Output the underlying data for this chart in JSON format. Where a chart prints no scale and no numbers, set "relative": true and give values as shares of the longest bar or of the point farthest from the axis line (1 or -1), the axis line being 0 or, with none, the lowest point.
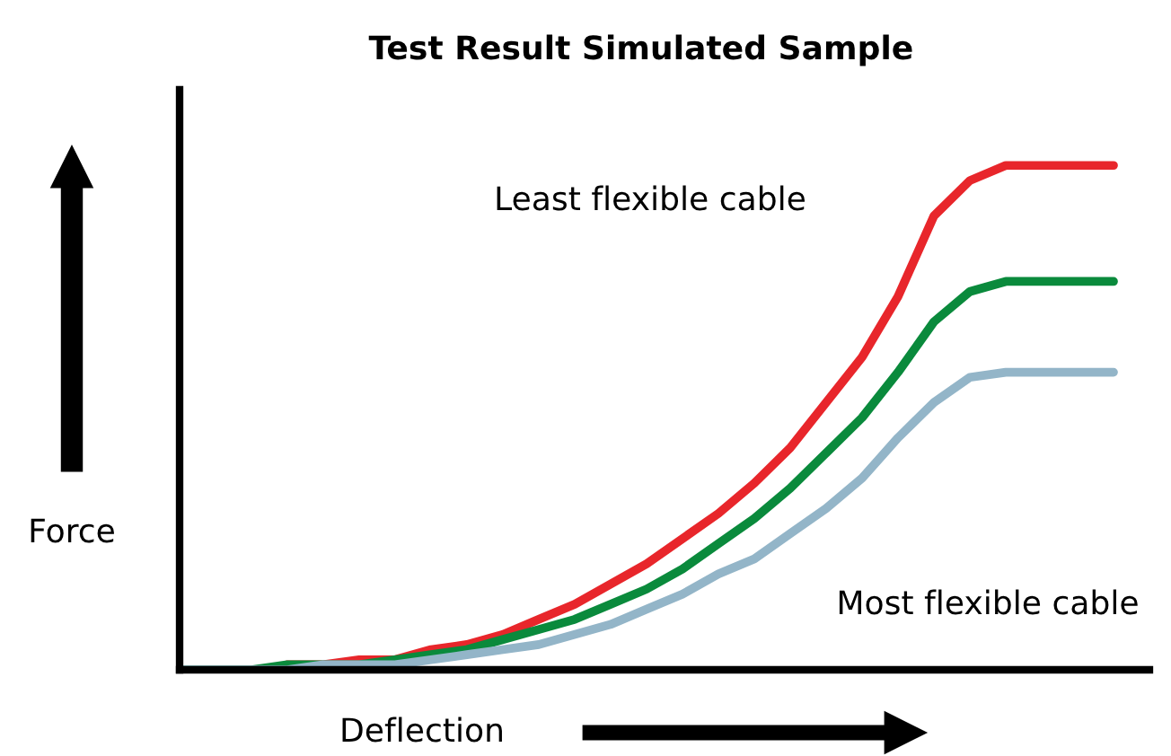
{
  "chart_data": {
    "type": "line",
    "title": "Test Result Simulated Sample",
    "xlabel": "Deflection",
    "ylabel": "Force",
    "relative": true,
    "categories": [
      null,
      null,
      null,
      null,
      null,
      null,
      null,
      null,
      null,
      null,
      null,
      null,
      null,
      null,
      null,
      null,
      null,
      null,
      null,
      null,
      null,
      null,
      null,
      null,
      null,
      null,
      null
    ],
    "series": [
      {
        "color": "#e8262b",
        "values": [
          null,
          null,
          null,
          0.01,
          0.01,
          0.02,
          0.02,
          0.04,
          0.05,
          0.07,
          0.1,
          0.13,
          0.17,
          0.21,
          0.26,
          0.31,
          0.37,
          0.44,
          0.53,
          0.62,
          0.74,
          0.9,
          0.97,
          1,
          1,
          1,
          1
        ]
      },
      {
        "color": "#0a8a3c",
        "values": [
          0,
          0,
          0,
          0.01,
          0.01,
          0.01,
          0.02,
          0.03,
          0.04,
          0.06,
          0.08,
          0.1,
          0.13,
          0.16,
          0.2,
          0.25,
          0.3,
          0.36,
          0.43,
          0.5,
          0.59,
          0.69,
          0.75,
          0.77,
          0.77,
          0.77,
          0.77
        ]
      },
      {
        "color": "#93b5c8",
        "values": [
          0,
          0,
          0,
          0,
          0.01,
          0.01,
          0.01,
          0.02,
          0.03,
          0.04,
          0.05,
          0.07,
          0.09,
          0.12,
          0.15,
          0.19,
          0.22,
          0.27,
          0.32,
          0.38,
          0.46,
          0.53,
          0.58,
          0.59,
          0.59,
          0.59,
          0.59
        ]
      }
    ],
    "annotations": [
      "Least flexible cable",
      "Most flexible cable"
    ],
    "marker": "none",
    "line_style": "solid"
  }
}
